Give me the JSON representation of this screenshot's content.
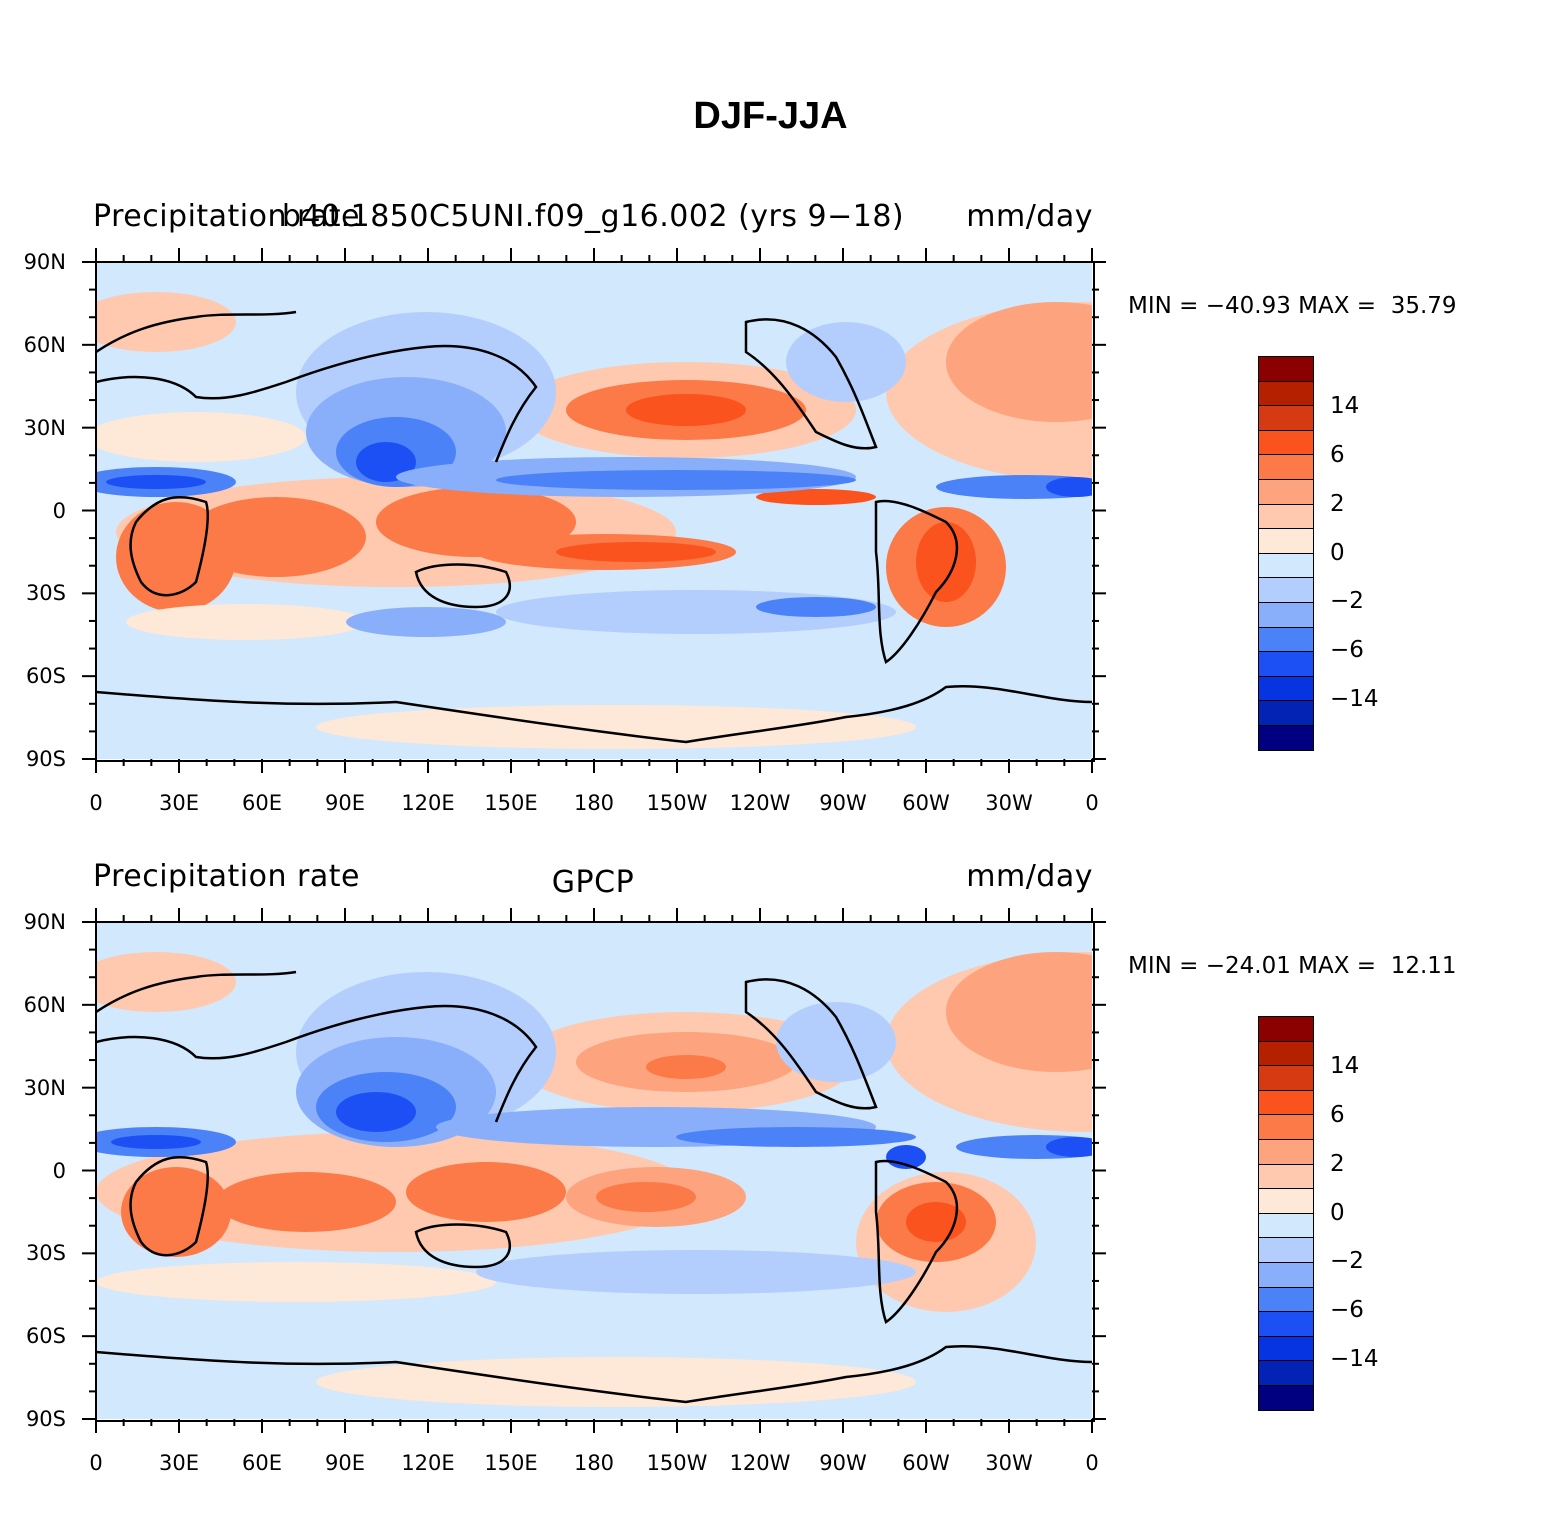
{
  "main_title": "DJF-JJA",
  "colors": {
    "levels": [
      "#8b0000",
      "#b52000",
      "#d53a12",
      "#fa531d",
      "#fc7a47",
      "#fda37d",
      "#fec9ae",
      "#fee8d8",
      "#d2e8fd",
      "#b3cefd",
      "#8aaffa",
      "#4c82f7",
      "#1c50f5",
      "#0734e1",
      "#0323b4",
      "#000080"
    ],
    "coastline": "#000000"
  },
  "colorbar": {
    "labels": [
      "14",
      "6",
      "2",
      "0",
      "−2",
      "−6",
      "−14"
    ]
  },
  "axes": {
    "y_ticks": [
      "90N",
      "60N",
      "30N",
      "0",
      "30S",
      "60S",
      "90S"
    ],
    "x_ticks": [
      "0",
      "30E",
      "60E",
      "90E",
      "120E",
      "150E",
      "180",
      "150W",
      "120W",
      "90W",
      "60W",
      "30W",
      "0"
    ]
  },
  "panels": [
    {
      "id": "top",
      "left_title": "Precipitation rate",
      "center_title": "b40.1850C5UNI.f09_g16.002 (yrs 9−18)",
      "right_title": "mm/day",
      "minmax": "MIN = −40.93 MAX =  35.79",
      "min": -40.93,
      "max": 35.79
    },
    {
      "id": "bottom",
      "left_title": "Precipitation rate",
      "center_title": "GPCP",
      "right_title": "mm/day",
      "minmax": "MIN = −24.01 MAX =  12.11",
      "min": -24.01,
      "max": 12.11
    }
  ]
}
